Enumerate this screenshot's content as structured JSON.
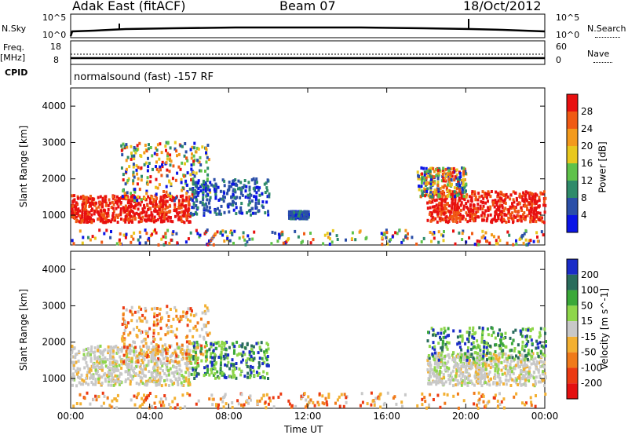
{
  "header": {
    "station": "Adak East (fitACF)",
    "beam": "Beam 07",
    "date": "18/Oct/2012"
  },
  "top_panels": {
    "nsky_label": "N.Sky",
    "nsearch_label": "N.Search",
    "nsky_ticks": [
      "10^5",
      "10^0"
    ],
    "nsearch_ticks": [
      "10^5",
      "10^0"
    ],
    "freq_label_1": "Freq.",
    "freq_label_2": "[MHz]",
    "freq_ticks": [
      "18",
      "8"
    ],
    "nave_label": "Nave",
    "nave_ticks": [
      "60",
      "0"
    ],
    "cpid_label": "CPID",
    "cpid_text": "normalsound (fast) -157 RF"
  },
  "chart_data": [
    {
      "type": "heatmap",
      "name": "power",
      "ylabel": "Slant Range [km]",
      "yticks": [
        "1000",
        "2000",
        "3000",
        "4000"
      ],
      "ylim": [
        180,
        4500
      ],
      "colorbar_label": "Power [dB]",
      "colorbar_ticks": [
        "4",
        "8",
        "12",
        "16",
        "20",
        "24",
        "28"
      ],
      "colors": [
        "#0a14e6",
        "#2b4fa8",
        "#2f8b6a",
        "#5fc24a",
        "#e8c81e",
        "#f39a1c",
        "#f05a14",
        "#e81010"
      ],
      "regions": [
        {
          "x": [
            0.0,
            6.0
          ],
          "y": [
            800,
            1550
          ],
          "level": "high"
        },
        {
          "x": [
            2.5,
            7.0
          ],
          "y": [
            1400,
            3000
          ],
          "level": "mixed"
        },
        {
          "x": [
            6.0,
            10.0
          ],
          "y": [
            1000,
            2000
          ],
          "level": "low"
        },
        {
          "x": [
            11.0,
            12.0
          ],
          "y": [
            900,
            1100
          ],
          "level": "low"
        },
        {
          "x": [
            18.0,
            24.0
          ],
          "y": [
            800,
            1650
          ],
          "level": "high"
        },
        {
          "x": [
            17.5,
            20.0
          ],
          "y": [
            1500,
            2300
          ],
          "level": "mixed"
        },
        {
          "x": [
            0.0,
            24.0
          ],
          "y": [
            180,
            600
          ],
          "level": "mixed"
        }
      ]
    },
    {
      "type": "heatmap",
      "name": "velocity",
      "ylabel": "Slant Range [km]",
      "yticks": [
        "1000",
        "2000",
        "3000",
        "4000"
      ],
      "ylim": [
        180,
        4500
      ],
      "colorbar_label": "Velocity [m s^-1]",
      "colorbar_ticks": [
        "200",
        "100",
        "50",
        "15",
        "-15",
        "-50",
        "-100",
        "-200"
      ],
      "colors": [
        "#1a2cc8",
        "#2a6c5c",
        "#3aa838",
        "#8ed64a",
        "#c8c8c8",
        "#f3b032",
        "#f07a1a",
        "#ec3a12",
        "#e41010"
      ],
      "regions": [
        {
          "x": [
            0.0,
            6.0
          ],
          "y": [
            800,
            1900
          ],
          "level": "neutral"
        },
        {
          "x": [
            2.5,
            7.0
          ],
          "y": [
            1400,
            3000
          ],
          "level": "negative"
        },
        {
          "x": [
            6.0,
            10.0
          ],
          "y": [
            1000,
            2000
          ],
          "level": "positive"
        },
        {
          "x": [
            18.0,
            24.0
          ],
          "y": [
            800,
            1700
          ],
          "level": "neutral"
        },
        {
          "x": [
            18.0,
            24.0
          ],
          "y": [
            1500,
            2400
          ],
          "level": "positive"
        },
        {
          "x": [
            0.0,
            24.0
          ],
          "y": [
            180,
            600
          ],
          "level": "negative"
        }
      ]
    }
  ],
  "xaxis": {
    "label": "Time UT",
    "ticks": [
      "00:00",
      "04:00",
      "08:00",
      "12:00",
      "16:00",
      "20:00",
      "00:00"
    ]
  }
}
